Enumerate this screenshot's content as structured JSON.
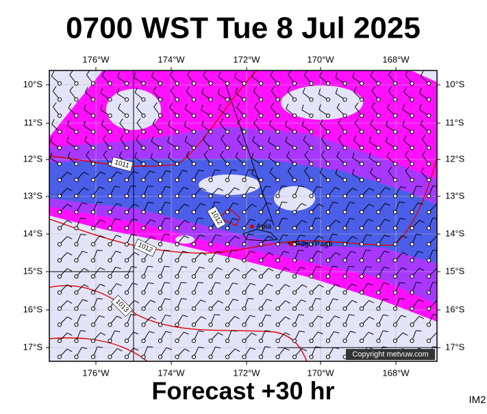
{
  "title": "0700 WST Tue 8 Jul 2025",
  "footer": "Forecast +30 hr",
  "code": "IM2",
  "copyright": "Copyright metvuw.com",
  "lon_labels": [
    "176°W",
    "174°W",
    "172°W",
    "170°W",
    "168°W"
  ],
  "lat_labels": [
    "10°S",
    "11°S",
    "12°S",
    "13°S",
    "14°S",
    "15°S",
    "16°S",
    "17°S"
  ],
  "places": [
    "Apia",
    "Pago Pago"
  ],
  "isobar_labels": [
    "1011",
    "1012",
    "1012",
    "1013"
  ]
}
